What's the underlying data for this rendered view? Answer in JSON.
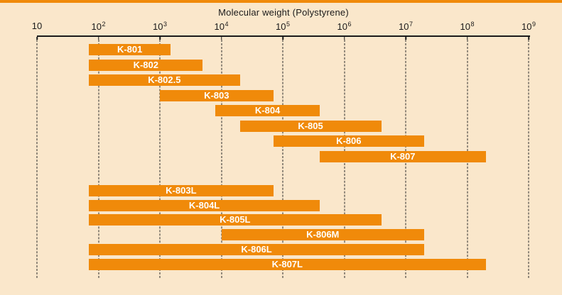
{
  "colors": {
    "background": "#FAE7CB",
    "bar": "#F08A0A",
    "top_border": "#F08A0A",
    "axis": "#1A1A1A",
    "grid": "#2B2B2B",
    "bar_label": "#FFFFFF",
    "text": "#1A1A1A"
  },
  "chart_data": {
    "type": "bar",
    "variant": "horizontal-range-bars",
    "title": "Molecular weight (Polystyrene)",
    "legend": "none",
    "grid": "vertical-dashed",
    "x_axis": {
      "scale": "log10",
      "min": 10,
      "max": 1000000000,
      "ticks": [
        {
          "value": 10,
          "base": "10",
          "exp": ""
        },
        {
          "value": 100,
          "base": "10",
          "exp": "2"
        },
        {
          "value": 1000,
          "base": "10",
          "exp": "3"
        },
        {
          "value": 10000,
          "base": "10",
          "exp": "4"
        },
        {
          "value": 100000,
          "base": "10",
          "exp": "5"
        },
        {
          "value": 1000000,
          "base": "10",
          "exp": "6"
        },
        {
          "value": 10000000,
          "base": "10",
          "exp": "7"
        },
        {
          "value": 100000000,
          "base": "10",
          "exp": "8"
        },
        {
          "value": 1000000000,
          "base": "10",
          "exp": "9"
        }
      ]
    },
    "series": [
      {
        "label": "K-801",
        "min": 70,
        "max": 1500,
        "group": 0
      },
      {
        "label": "K-802",
        "min": 70,
        "max": 5000,
        "group": 0
      },
      {
        "label": "K-802.5",
        "min": 70,
        "max": 20000,
        "group": 0
      },
      {
        "label": "K-803",
        "min": 1000,
        "max": 70000,
        "group": 0
      },
      {
        "label": "K-804",
        "min": 8000,
        "max": 400000,
        "group": 0
      },
      {
        "label": "K-805",
        "min": 20000,
        "max": 4000000,
        "group": 0
      },
      {
        "label": "K-806",
        "min": 70000,
        "max": 20000000,
        "group": 0
      },
      {
        "label": "K-807",
        "min": 400000,
        "max": 200000000,
        "group": 0
      },
      {
        "label": "K-803L",
        "min": 70,
        "max": 70000,
        "group": 1
      },
      {
        "label": "K-804L",
        "min": 70,
        "max": 400000,
        "group": 1
      },
      {
        "label": "K-805L",
        "min": 70,
        "max": 4000000,
        "group": 1
      },
      {
        "label": "K-806M",
        "min": 10000,
        "max": 20000000,
        "group": 1
      },
      {
        "label": "K-806L",
        "min": 70,
        "max": 20000000,
        "group": 1
      },
      {
        "label": "K-807L",
        "min": 70,
        "max": 200000000,
        "group": 1
      }
    ]
  }
}
